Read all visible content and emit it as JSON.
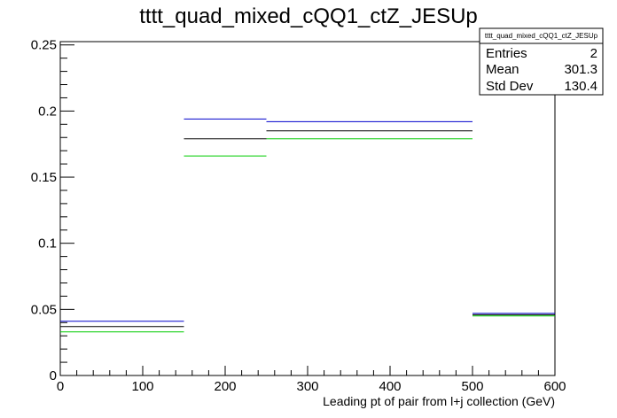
{
  "chart_data": {
    "type": "step",
    "title": "tttt_quad_mixed_cQQ1_ctZ_JESUp",
    "xlabel": "Leading pt of pair from l+j collection (GeV)",
    "ylabel": "",
    "xlim": [
      0,
      600
    ],
    "ylim": [
      0,
      0.2525
    ],
    "x_ticks": [
      0,
      100,
      200,
      300,
      400,
      500,
      600
    ],
    "x_tick_labels": [
      "0",
      "100",
      "200",
      "300",
      "400",
      "500",
      "600"
    ],
    "y_ticks": [
      0,
      0.05,
      0.1,
      0.15,
      0.2,
      0.25
    ],
    "y_tick_labels": [
      "0",
      "0.05",
      "0.1",
      "0.15",
      "0.2",
      "0.25"
    ],
    "bin_edges": [
      0,
      150,
      250,
      500,
      600
    ],
    "series": [
      {
        "color": "#0000cc",
        "values": [
          0.041,
          0.194,
          0.192,
          0.047
        ]
      },
      {
        "color": "#000000",
        "values": [
          0.037,
          0.179,
          0.185,
          0.046
        ]
      },
      {
        "color": "#00cc00",
        "values": [
          0.033,
          0.166,
          0.179,
          0.045
        ]
      }
    ],
    "stats_box": {
      "title": "tttt_quad_mixed_cQQ1_ctZ_JESUp",
      "rows": [
        {
          "label": "Entries",
          "value": "2"
        },
        {
          "label": "Mean",
          "value": "301.3"
        },
        {
          "label": "Std Dev",
          "value": "130.4"
        }
      ]
    }
  }
}
